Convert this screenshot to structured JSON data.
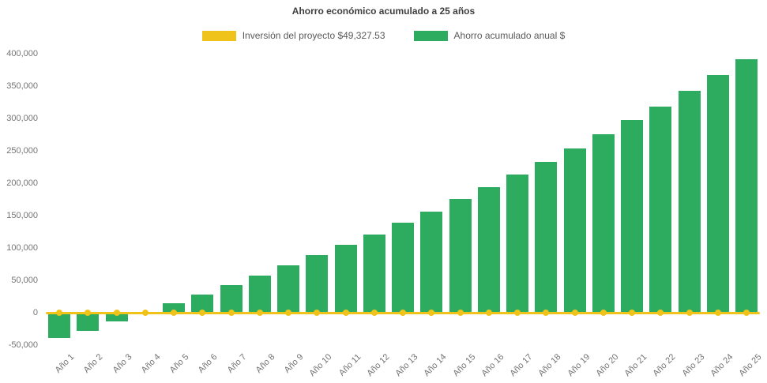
{
  "title": "Ahorro económico acumulado a 25 años",
  "chart_data": {
    "type": "bar",
    "title": "Ahorro económico acumulado a 25 años",
    "categories": [
      "Año 1",
      "Año 2",
      "Año 3",
      "Año 4",
      "Año 5",
      "Año 6",
      "Año 7",
      "Año 8",
      "Año 9",
      "Año 10",
      "Año 11",
      "Año 12",
      "Año 13",
      "Año 14",
      "Año 15",
      "Año 16",
      "Año 17",
      "Año 18",
      "Año 19",
      "Año 20",
      "Año 21",
      "Año 22",
      "Año 23",
      "Año 24",
      "Año 25"
    ],
    "series": [
      {
        "name": "Inversión del proyecto $49,327.53",
        "type": "line",
        "color": "#EFC319",
        "values": [
          0,
          0,
          0,
          0,
          0,
          0,
          0,
          0,
          0,
          0,
          0,
          0,
          0,
          0,
          0,
          0,
          0,
          0,
          0,
          0,
          0,
          0,
          0,
          0,
          0
        ]
      },
      {
        "name": "Ahorro acumulado anual $",
        "type": "bar",
        "color": "#2DAC60",
        "values": [
          -39000,
          -28000,
          -14000,
          1000,
          15000,
          28000,
          43000,
          57000,
          73000,
          89000,
          105000,
          121000,
          139000,
          156000,
          176000,
          194000,
          213000,
          233000,
          254000,
          276000,
          297000,
          318000,
          343000,
          367000,
          391000
        ]
      }
    ],
    "xlabel": "",
    "ylabel": "",
    "ylim": [
      -50000,
      400000
    ],
    "yticks": [
      400000,
      350000,
      300000,
      250000,
      200000,
      150000,
      100000,
      50000,
      0,
      -50000
    ],
    "grid": false,
    "legend_position": "top"
  }
}
